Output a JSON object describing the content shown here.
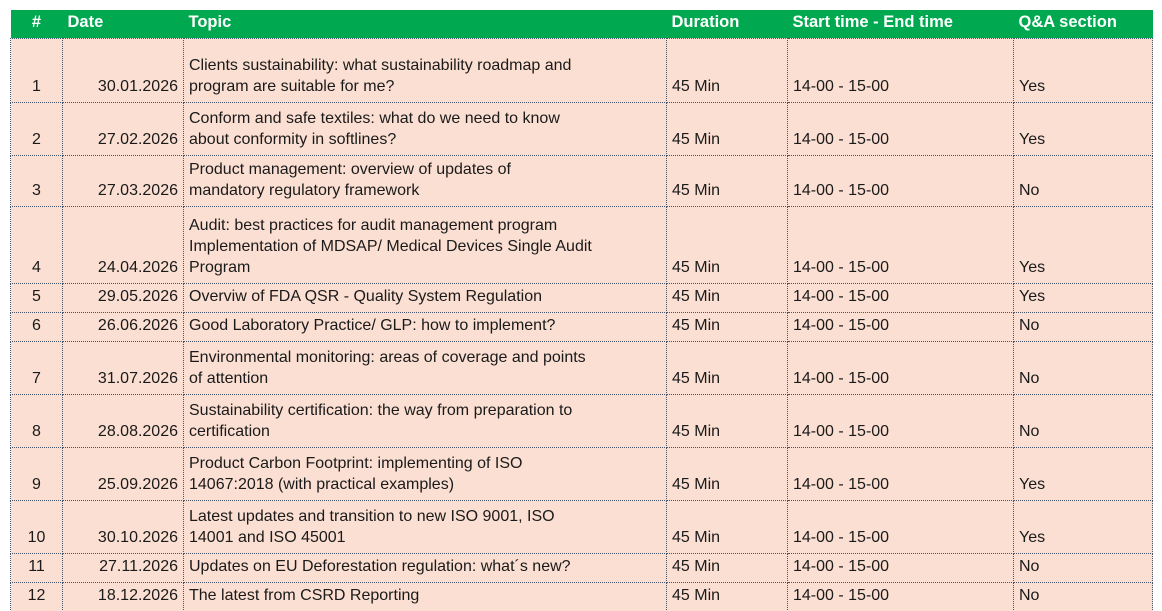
{
  "colors": {
    "header_bg": "#00A94F",
    "header_text": "#FFFFFF",
    "row_bg": "#FBDFD2",
    "border": "#44546A",
    "text": "#1A1A1A"
  },
  "table": {
    "columns": [
      {
        "key": "num",
        "label": "#"
      },
      {
        "key": "date",
        "label": "Date"
      },
      {
        "key": "topic",
        "label": "Topic"
      },
      {
        "key": "duration",
        "label": "Duration"
      },
      {
        "key": "time",
        "label": "Start time - End time"
      },
      {
        "key": "qa",
        "label": "Q&A section"
      }
    ],
    "rows": [
      {
        "num": "1",
        "date": "30.01.2026",
        "topic": "Clients sustainability: what sustainability roadmap and\nprogram are suitable for me?",
        "duration": "45 Min",
        "time": "14-00 - 15-00",
        "qa": "Yes"
      },
      {
        "num": "2",
        "date": "27.02.2026",
        "topic": "Conform and safe textiles: what do we need to know\nabout conformity in softlines?",
        "duration": "45 Min",
        "time": "14-00 - 15-00",
        "qa": "Yes"
      },
      {
        "num": "3",
        "date": "27.03.2026",
        "topic": "Product management: overview of updates of\nmandatory regulatory framework",
        "duration": "45 Min",
        "time": "14-00 - 15-00",
        "qa": "No"
      },
      {
        "num": "4",
        "date": "24.04.2026",
        "topic": "Audit: best practices for audit management program\nImplementation of MDSAP/ Medical Devices Single Audit\nProgram",
        "duration": "45 Min",
        "time": "14-00 - 15-00",
        "qa": "Yes"
      },
      {
        "num": "5",
        "date": "29.05.2026",
        "topic": "Overviw of FDA QSR - Quality System Regulation",
        "duration": "45 Min",
        "time": "14-00 - 15-00",
        "qa": "Yes"
      },
      {
        "num": "6",
        "date": "26.06.2026",
        "topic": "Good Laboratory Practice/ GLP: how to implement?",
        "duration": "45 Min",
        "time": "14-00 - 15-00",
        "qa": "No"
      },
      {
        "num": "7",
        "date": "31.07.2026",
        "topic": "Environmental monitoring: areas of coverage and points\nof attention",
        "duration": "45 Min",
        "time": "14-00 - 15-00",
        "qa": "No"
      },
      {
        "num": "8",
        "date": "28.08.2026",
        "topic": "Sustainability certification: the way from preparation to\ncertification",
        "duration": "45 Min",
        "time": "14-00 - 15-00",
        "qa": "No"
      },
      {
        "num": "9",
        "date": "25.09.2026",
        "topic": "Product Carbon Footprint: implementing of ISO\n14067:2018 (with practical examples)",
        "duration": "45 Min",
        "time": "14-00 - 15-00",
        "qa": "Yes"
      },
      {
        "num": "10",
        "date": "30.10.2026",
        "topic": "Latest updates and transition to new ISO 9001, ISO\n14001 and ISO 45001",
        "duration": "45 Min",
        "time": "14-00 - 15-00",
        "qa": "Yes"
      },
      {
        "num": "11",
        "date": "27.11.2026",
        "topic": "Updates on EU Deforestation regulation: what´s new?",
        "duration": "45 Min",
        "time": "14-00 - 15-00",
        "qa": "No"
      },
      {
        "num": "12",
        "date": "18.12.2026",
        "topic": "The latest from CSRD Reporting",
        "duration": "45 Min",
        "time": "14-00 - 15-00",
        "qa": "No"
      }
    ]
  }
}
